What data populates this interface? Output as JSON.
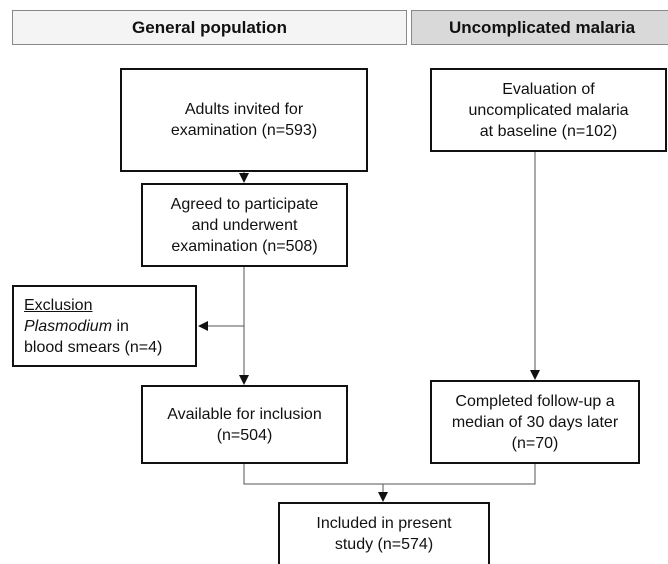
{
  "headers": {
    "left": "General population",
    "right": "Uncomplicated malaria"
  },
  "nodes": {
    "invited": {
      "lines": [
        "Adults invited for",
        "examination (n=593)"
      ]
    },
    "agreed": {
      "lines": [
        "Agreed to participate",
        "and underwent",
        "examination (n=508)"
      ]
    },
    "exclusion": {
      "heading": "Exclusion",
      "organism": "Plasmodium",
      "organism_suffix": "in",
      "lines": [
        "blood smears (n=4)"
      ]
    },
    "available": {
      "lines": [
        "Available for inclusion",
        "(n=504)"
      ]
    },
    "evaluation": {
      "lines": [
        "Evaluation of",
        "uncomplicated malaria",
        "at baseline (n=102)"
      ]
    },
    "completed": {
      "lines": [
        "Completed follow-up a",
        "median of 30 days later",
        "(n=70)"
      ]
    },
    "included": {
      "lines": [
        "Included in present",
        "study (n=574)"
      ]
    }
  }
}
